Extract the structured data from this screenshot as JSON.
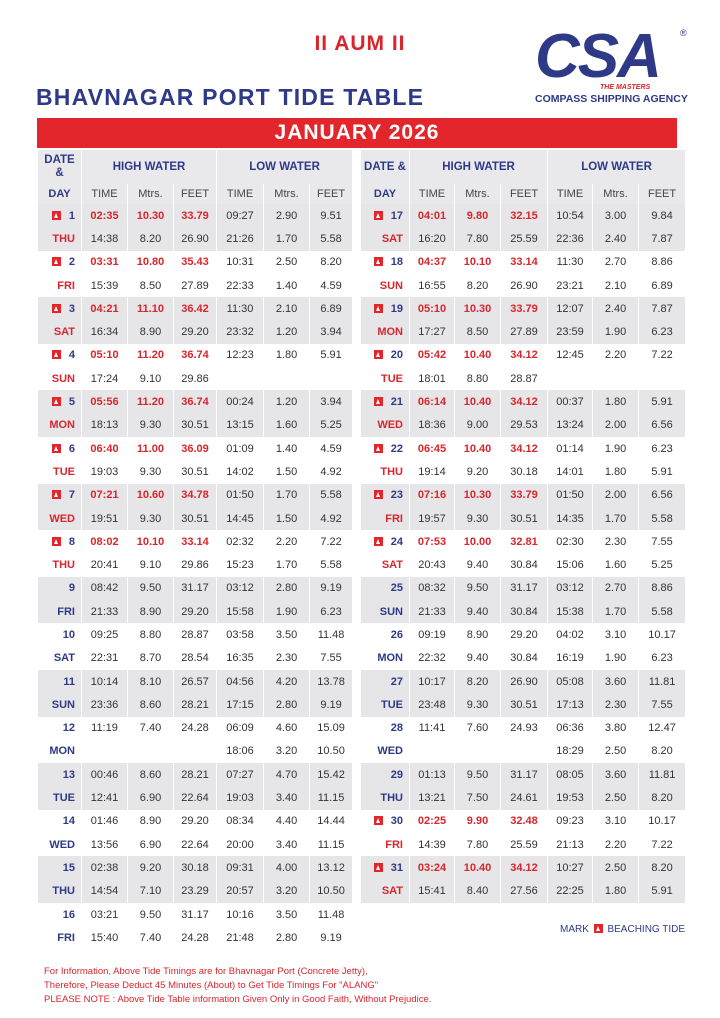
{
  "header": {
    "invocation": "II AUM II",
    "title": "BHAVNAGAR PORT TIDE TABLE",
    "logo": {
      "mark": "CSA",
      "registered": "®",
      "tagline": "THE MASTERS",
      "company": "COMPASS SHIPPING AGENCY"
    }
  },
  "month": "JANUARY 2026",
  "columns": {
    "date": "DATE &",
    "day": "DAY",
    "high_water": "HIGH WATER",
    "low_water": "LOW WATER",
    "time": "TIME",
    "metres": "Mtrs.",
    "feet": "FEET"
  },
  "tables": [
    {
      "days": [
        {
          "date": 1,
          "day": "THU",
          "beaching": true,
          "tides": [
            [
              "02:35",
              "10.30",
              "33.79",
              "09:27",
              "2.90",
              "9.51"
            ],
            [
              "14:38",
              "8.20",
              "26.90",
              "21:26",
              "1.70",
              "5.58"
            ]
          ]
        },
        {
          "date": 2,
          "day": "FRI",
          "beaching": true,
          "tides": [
            [
              "03:31",
              "10.80",
              "35.43",
              "10:31",
              "2.50",
              "8.20"
            ],
            [
              "15:39",
              "8.50",
              "27.89",
              "22:33",
              "1.40",
              "4.59"
            ]
          ]
        },
        {
          "date": 3,
          "day": "SAT",
          "beaching": true,
          "tides": [
            [
              "04:21",
              "11.10",
              "36.42",
              "11:30",
              "2.10",
              "6.89"
            ],
            [
              "16:34",
              "8.90",
              "29.20",
              "23:32",
              "1.20",
              "3.94"
            ]
          ]
        },
        {
          "date": 4,
          "day": "SUN",
          "beaching": true,
          "tides": [
            [
              "05:10",
              "11.20",
              "36.74",
              "12:23",
              "1.80",
              "5.91"
            ],
            [
              "17:24",
              "9.10",
              "29.86",
              null,
              null,
              null
            ]
          ]
        },
        {
          "date": 5,
          "day": "MON",
          "beaching": true,
          "tides": [
            [
              "05:56",
              "11.20",
              "36.74",
              "00:24",
              "1.20",
              "3.94"
            ],
            [
              "18:13",
              "9.30",
              "30.51",
              "13:15",
              "1.60",
              "5.25"
            ]
          ]
        },
        {
          "date": 6,
          "day": "TUE",
          "beaching": true,
          "tides": [
            [
              "06:40",
              "11.00",
              "36.09",
              "01:09",
              "1.40",
              "4.59"
            ],
            [
              "19:03",
              "9.30",
              "30.51",
              "14:02",
              "1.50",
              "4.92"
            ]
          ]
        },
        {
          "date": 7,
          "day": "WED",
          "beaching": true,
          "tides": [
            [
              "07:21",
              "10.60",
              "34.78",
              "01:50",
              "1.70",
              "5.58"
            ],
            [
              "19:51",
              "9.30",
              "30.51",
              "14:45",
              "1.50",
              "4.92"
            ]
          ]
        },
        {
          "date": 8,
          "day": "THU",
          "beaching": true,
          "tides": [
            [
              "08:02",
              "10.10",
              "33.14",
              "02:32",
              "2.20",
              "7.22"
            ],
            [
              "20:41",
              "9.10",
              "29.86",
              "15:23",
              "1.70",
              "5.58"
            ]
          ]
        },
        {
          "date": 9,
          "day": "FRI",
          "beaching": false,
          "tides": [
            [
              "08:42",
              "9.50",
              "31.17",
              "03:12",
              "2.80",
              "9.19"
            ],
            [
              "21:33",
              "8.90",
              "29.20",
              "15:58",
              "1.90",
              "6.23"
            ]
          ]
        },
        {
          "date": 10,
          "day": "SAT",
          "beaching": false,
          "tides": [
            [
              "09:25",
              "8.80",
              "28.87",
              "03:58",
              "3.50",
              "11.48"
            ],
            [
              "22:31",
              "8.70",
              "28.54",
              "16:35",
              "2.30",
              "7.55"
            ]
          ]
        },
        {
          "date": 11,
          "day": "SUN",
          "beaching": false,
          "tides": [
            [
              "10:14",
              "8.10",
              "26.57",
              "04:56",
              "4.20",
              "13.78"
            ],
            [
              "23:36",
              "8.60",
              "28.21",
              "17:15",
              "2.80",
              "9.19"
            ]
          ]
        },
        {
          "date": 12,
          "day": "MON",
          "beaching": false,
          "tides": [
            [
              "11:19",
              "7.40",
              "24.28",
              "06:09",
              "4.60",
              "15.09"
            ],
            [
              null,
              null,
              null,
              "18:06",
              "3.20",
              "10.50"
            ]
          ]
        },
        {
          "date": 13,
          "day": "TUE",
          "beaching": false,
          "tides": [
            [
              "00:46",
              "8.60",
              "28.21",
              "07:27",
              "4.70",
              "15.42"
            ],
            [
              "12:41",
              "6.90",
              "22.64",
              "19:03",
              "3.40",
              "11.15"
            ]
          ]
        },
        {
          "date": 14,
          "day": "WED",
          "beaching": false,
          "tides": [
            [
              "01:46",
              "8.90",
              "29.20",
              "08:34",
              "4.40",
              "14.44"
            ],
            [
              "13:56",
              "6.90",
              "22.64",
              "20:00",
              "3.40",
              "11.15"
            ]
          ]
        },
        {
          "date": 15,
          "day": "THU",
          "beaching": false,
          "tides": [
            [
              "02:38",
              "9.20",
              "30.18",
              "09:31",
              "4.00",
              "13.12"
            ],
            [
              "14:54",
              "7.10",
              "23.29",
              "20:57",
              "3.20",
              "10.50"
            ]
          ]
        },
        {
          "date": 16,
          "day": "FRI",
          "beaching": false,
          "tides": [
            [
              "03:21",
              "9.50",
              "31.17",
              "10:16",
              "3.50",
              "11.48"
            ],
            [
              "15:40",
              "7.40",
              "24.28",
              "21:48",
              "2.80",
              "9.19"
            ]
          ]
        }
      ]
    },
    {
      "days": [
        {
          "date": 17,
          "day": "SAT",
          "beaching": true,
          "tides": [
            [
              "04:01",
              "9.80",
              "32.15",
              "10:54",
              "3.00",
              "9.84"
            ],
            [
              "16:20",
              "7.80",
              "25.59",
              "22:36",
              "2.40",
              "7.87"
            ]
          ]
        },
        {
          "date": 18,
          "day": "SUN",
          "beaching": true,
          "tides": [
            [
              "04:37",
              "10.10",
              "33.14",
              "11:30",
              "2.70",
              "8.86"
            ],
            [
              "16:55",
              "8.20",
              "26.90",
              "23:21",
              "2.10",
              "6.89"
            ]
          ]
        },
        {
          "date": 19,
          "day": "MON",
          "beaching": true,
          "tides": [
            [
              "05:10",
              "10.30",
              "33.79",
              "12:07",
              "2.40",
              "7.87"
            ],
            [
              "17:27",
              "8.50",
              "27.89",
              "23:59",
              "1.90",
              "6.23"
            ]
          ]
        },
        {
          "date": 20,
          "day": "TUE",
          "beaching": true,
          "tides": [
            [
              "05:42",
              "10.40",
              "34.12",
              "12:45",
              "2.20",
              "7.22"
            ],
            [
              "18:01",
              "8.80",
              "28.87",
              null,
              null,
              null
            ]
          ]
        },
        {
          "date": 21,
          "day": "WED",
          "beaching": true,
          "tides": [
            [
              "06:14",
              "10.40",
              "34.12",
              "00:37",
              "1.80",
              "5.91"
            ],
            [
              "18:36",
              "9.00",
              "29.53",
              "13:24",
              "2.00",
              "6.56"
            ]
          ]
        },
        {
          "date": 22,
          "day": "THU",
          "beaching": true,
          "tides": [
            [
              "06:45",
              "10.40",
              "34.12",
              "01:14",
              "1.90",
              "6.23"
            ],
            [
              "19:14",
              "9.20",
              "30.18",
              "14:01",
              "1.80",
              "5.91"
            ]
          ]
        },
        {
          "date": 23,
          "day": "FRI",
          "beaching": true,
          "tides": [
            [
              "07:16",
              "10.30",
              "33.79",
              "01:50",
              "2.00",
              "6.56"
            ],
            [
              "19:57",
              "9.30",
              "30.51",
              "14:35",
              "1.70",
              "5.58"
            ]
          ]
        },
        {
          "date": 24,
          "day": "SAT",
          "beaching": true,
          "tides": [
            [
              "07:53",
              "10.00",
              "32.81",
              "02:30",
              "2.30",
              "7.55"
            ],
            [
              "20:43",
              "9.40",
              "30.84",
              "15:06",
              "1.60",
              "5.25"
            ]
          ]
        },
        {
          "date": 25,
          "day": "SUN",
          "beaching": false,
          "tides": [
            [
              "08:32",
              "9.50",
              "31.17",
              "03:12",
              "2.70",
              "8.86"
            ],
            [
              "21:33",
              "9.40",
              "30.84",
              "15:38",
              "1.70",
              "5.58"
            ]
          ]
        },
        {
          "date": 26,
          "day": "MON",
          "beaching": false,
          "tides": [
            [
              "09:19",
              "8.90",
              "29.20",
              "04:02",
              "3.10",
              "10.17"
            ],
            [
              "22:32",
              "9.40",
              "30.84",
              "16:19",
              "1.90",
              "6.23"
            ]
          ]
        },
        {
          "date": 27,
          "day": "TUE",
          "beaching": false,
          "tides": [
            [
              "10:17",
              "8.20",
              "26.90",
              "05:08",
              "3.60",
              "11.81"
            ],
            [
              "23:48",
              "9.30",
              "30.51",
              "17:13",
              "2.30",
              "7.55"
            ]
          ]
        },
        {
          "date": 28,
          "day": "WED",
          "beaching": false,
          "tides": [
            [
              "11:41",
              "7.60",
              "24.93",
              "06:36",
              "3.80",
              "12.47"
            ],
            [
              null,
              null,
              null,
              "18:29",
              "2.50",
              "8.20"
            ]
          ]
        },
        {
          "date": 29,
          "day": "THU",
          "beaching": false,
          "tides": [
            [
              "01:13",
              "9.50",
              "31.17",
              "08:05",
              "3.60",
              "11.81"
            ],
            [
              "13:21",
              "7.50",
              "24.61",
              "19:53",
              "2.50",
              "8.20"
            ]
          ]
        },
        {
          "date": 30,
          "day": "FRI",
          "beaching": true,
          "tides": [
            [
              "02:25",
              "9.90",
              "32.48",
              "09:23",
              "3.10",
              "10.17"
            ],
            [
              "14:39",
              "7.80",
              "25.59",
              "21:13",
              "2.20",
              "7.22"
            ]
          ]
        },
        {
          "date": 31,
          "day": "SAT",
          "beaching": true,
          "tides": [
            [
              "03:24",
              "10.40",
              "34.12",
              "10:27",
              "2.50",
              "8.20"
            ],
            [
              "15:41",
              "8.40",
              "27.56",
              "22:25",
              "1.80",
              "5.91"
            ]
          ]
        }
      ]
    }
  ],
  "legend": {
    "mark": "MARK",
    "label": "BEACHING TIDE"
  },
  "notes": [
    "For Information, Above Tide Timings are for Bhavnagar Port (Concrete Jetty),",
    "Therefore, Please Deduct 45 Minutes (About) to Get Tide Timings For \"ALANG\"",
    "PLEASE NOTE : Above Tide Table information Given Only in Good Faith, Without Prejudice."
  ]
}
